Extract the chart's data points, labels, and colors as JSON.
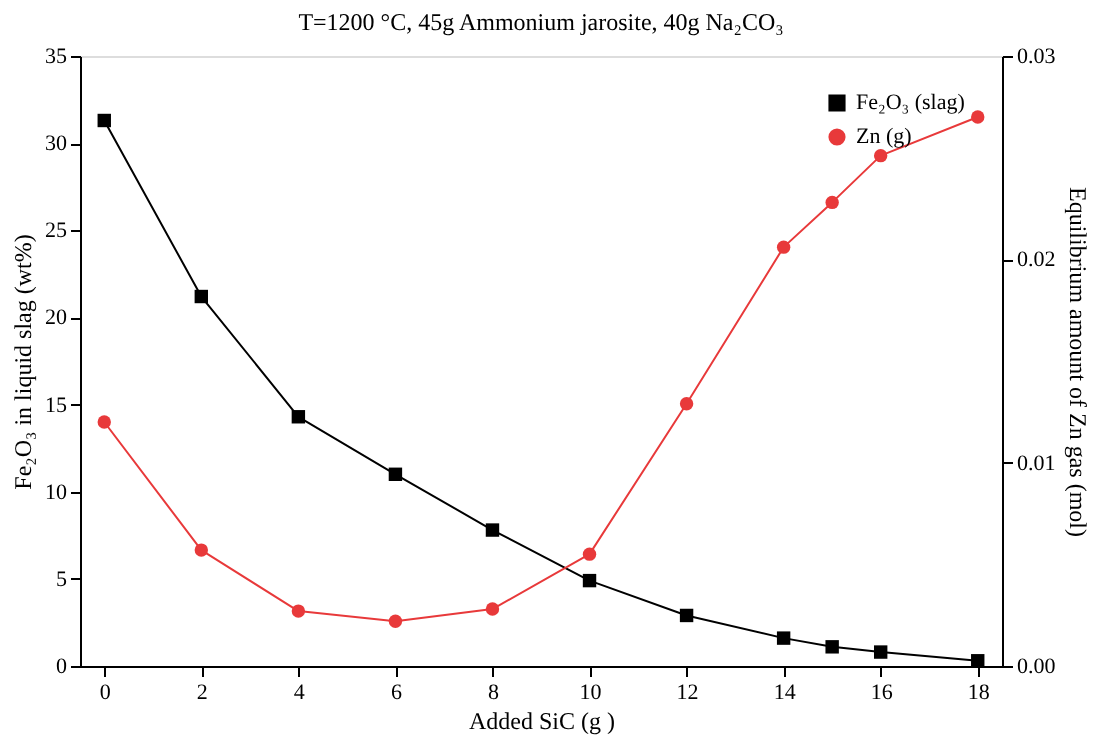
{
  "chart_data": {
    "type": "line",
    "title": "T=1200 °C, 45g Ammonium jarosite, 40g Na₂CO₃",
    "xlabel": "Added SiC (g )",
    "ylabel": "Fe₂O₃ in liquid slag (wt%)",
    "y2label": "Equilibrium amount of Zn gas (mol)",
    "x": [
      0,
      2,
      4,
      6,
      8,
      10,
      12,
      14,
      15,
      16,
      18
    ],
    "series": [
      {
        "name": "Fe₂O₃ (slag)",
        "color": "#000000",
        "marker": "square",
        "values": [
          31.3,
          21.2,
          14.3,
          11.0,
          7.8,
          4.9,
          2.9,
          1.6,
          1.1,
          0.8,
          0.3
        ]
      },
      {
        "name": "Zn (g)",
        "color": "#e8393a",
        "marker": "circle",
        "axis": "y2",
        "values": [
          0.012,
          0.0057,
          0.0027,
          0.0022,
          0.0028,
          0.0055,
          0.0129,
          0.0206,
          0.0228,
          0.0251,
          0.027
        ]
      }
    ],
    "xlim": [
      -0.5,
      18.5
    ],
    "xticks": [
      0,
      2,
      4,
      6,
      8,
      10,
      12,
      14,
      16,
      18
    ],
    "ylim": [
      0,
      35
    ],
    "yticks": [
      0,
      5,
      10,
      15,
      20,
      25,
      30,
      35
    ],
    "y2lim": [
      0,
      0.03
    ],
    "y2ticks": [
      {
        "value": 0,
        "label": "0.00"
      },
      {
        "value": 0.01,
        "label": "0.01"
      },
      {
        "value": 0.02,
        "label": "0.02"
      },
      {
        "value": 0.03,
        "label": "0.03"
      }
    ],
    "grid": false,
    "legend": "top right",
    "line_style": "solid"
  }
}
